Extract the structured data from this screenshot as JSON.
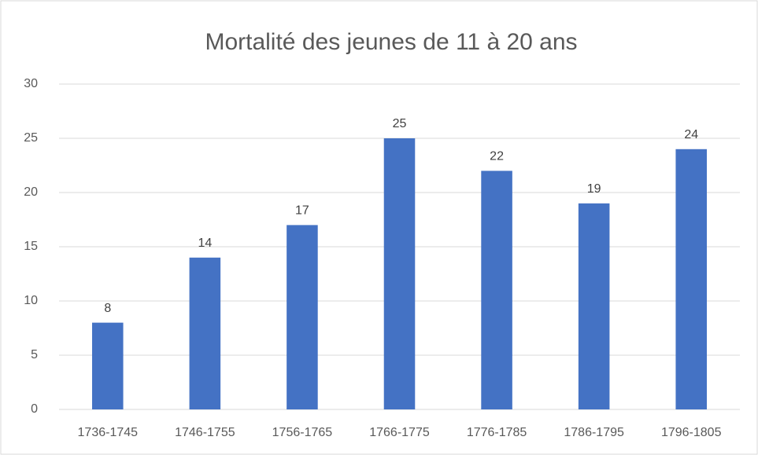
{
  "chart_data": {
    "type": "bar",
    "title": "Mortalité des jeunes de 11 à 20 ans",
    "categories": [
      "1736-1745",
      "1746-1755",
      "1756-1765",
      "1766-1775",
      "1776-1785",
      "1786-1795",
      "1796-1805"
    ],
    "values": [
      8,
      14,
      17,
      25,
      22,
      19,
      24
    ],
    "color": "#4472c4",
    "ylim": [
      0,
      30
    ],
    "yticks": [
      0,
      5,
      10,
      15,
      20,
      25,
      30
    ],
    "grid": true
  }
}
